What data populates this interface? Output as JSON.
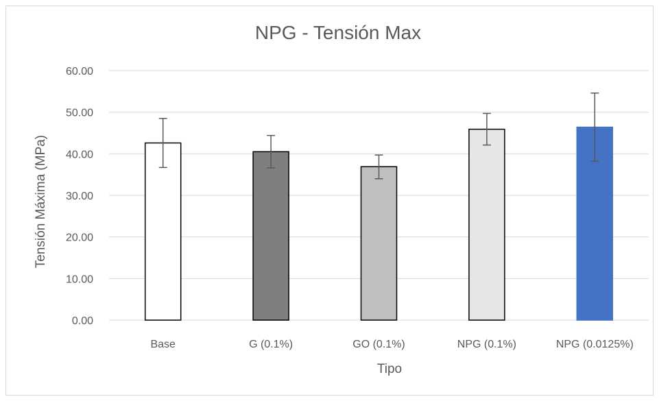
{
  "chart_data": {
    "type": "bar",
    "title": "NPG - Tensión Max",
    "xlabel": "Tipo",
    "ylabel": "Tensión Máxima (MPa)",
    "ylim": [
      0,
      60
    ],
    "yticks": [
      "0.00",
      "10.00",
      "20.00",
      "30.00",
      "40.00",
      "50.00",
      "60.00"
    ],
    "grid": true,
    "legend": "none",
    "categories": [
      "Base",
      "G (0.1%)",
      "GO (0.1%)",
      "NPG (0.1%)",
      "NPG (0.0125%)"
    ],
    "values": [
      42.6,
      40.5,
      36.9,
      45.9,
      46.4
    ],
    "error_low": [
      36.7,
      36.6,
      34.0,
      42.1,
      38.2
    ],
    "error_high": [
      48.5,
      44.4,
      39.7,
      49.7,
      54.6
    ],
    "bar_fills": [
      "#ffffff",
      "#7f7f7f",
      "#bfbfbf",
      "#e6e6e6",
      "#4472c4"
    ],
    "bar_outlines": [
      "#000000",
      "#000000",
      "#000000",
      "#000000",
      "#4472c4"
    ]
  }
}
